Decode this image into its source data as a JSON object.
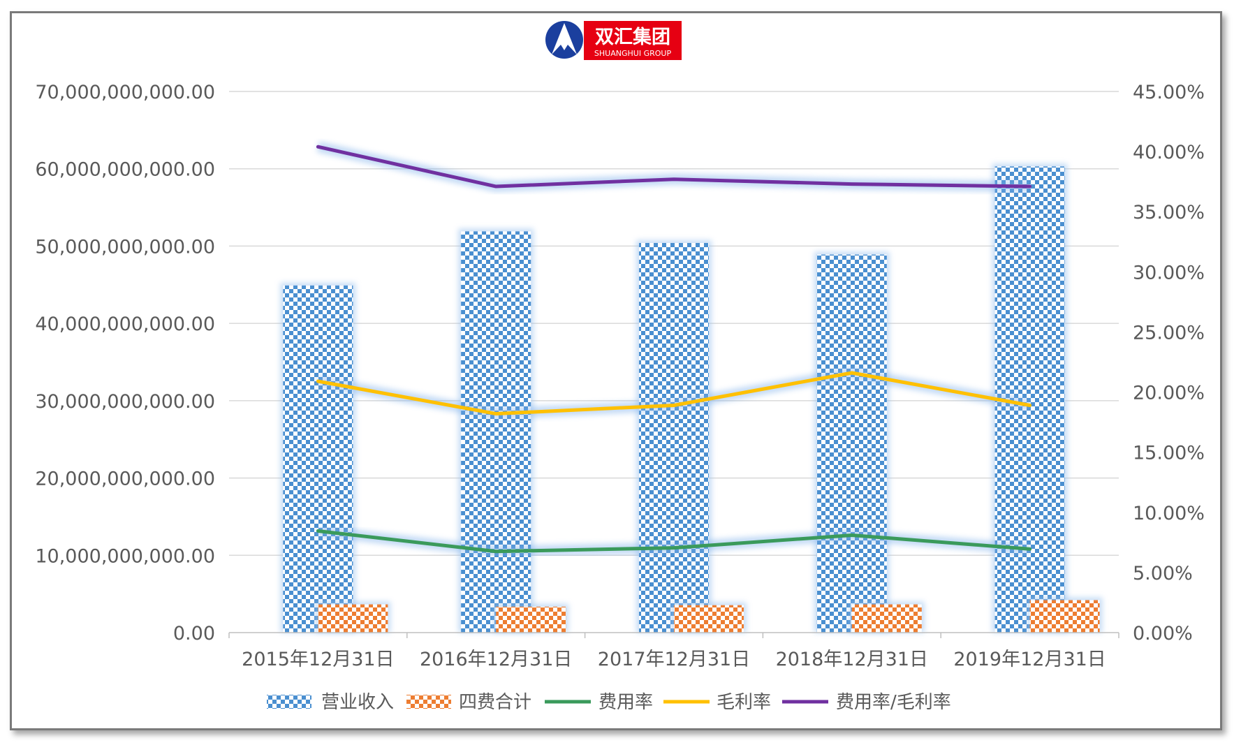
{
  "logo": {
    "name_cn": "双汇集团",
    "name_en": "SHUANGHUI GROUP"
  },
  "chart_data": {
    "type": "bar",
    "categories": [
      "2015年12月31日",
      "2016年12月31日",
      "2017年12月31日",
      "2018年12月31日",
      "2019年12月31日"
    ],
    "y_left": {
      "ylim": [
        0,
        70000000000
      ],
      "ticks": [
        "0.00",
        "10,000,000,000.00",
        "20,000,000,000.00",
        "30,000,000,000.00",
        "40,000,000,000.00",
        "50,000,000,000.00",
        "60,000,000,000.00",
        "70,000,000,000.00"
      ]
    },
    "y_right": {
      "ylim": [
        0,
        0.45
      ],
      "ticks": [
        "0.00%",
        "5.00%",
        "10.00%",
        "15.00%",
        "20.00%",
        "25.00%",
        "30.00%",
        "35.00%",
        "40.00%",
        "45.00%"
      ]
    },
    "bar_series": [
      {
        "name": "营业收入",
        "axis": "left",
        "color": "#5b9bd5",
        "values": [
          44900000000,
          51900000000,
          50400000000,
          48900000000,
          60300000000
        ]
      },
      {
        "name": "四费合计",
        "axis": "left",
        "color": "#ed7d31",
        "values": [
          3650000000,
          3350000000,
          3550000000,
          3650000000,
          4200000000
        ]
      }
    ],
    "line_series": [
      {
        "name": "费用率",
        "axis": "right",
        "color": "#3a9a5b",
        "values": [
          0.0845,
          0.0675,
          0.0705,
          0.081,
          0.0695
        ]
      },
      {
        "name": "毛利率",
        "axis": "right",
        "color": "#ffc000",
        "values": [
          0.209,
          0.182,
          0.189,
          0.216,
          0.189
        ]
      },
      {
        "name": "费用率/毛利率",
        "axis": "right",
        "color": "#7030a0",
        "values": [
          0.404,
          0.371,
          0.377,
          0.373,
          0.371
        ]
      }
    ],
    "grid": true,
    "legend_position": "bottom"
  }
}
